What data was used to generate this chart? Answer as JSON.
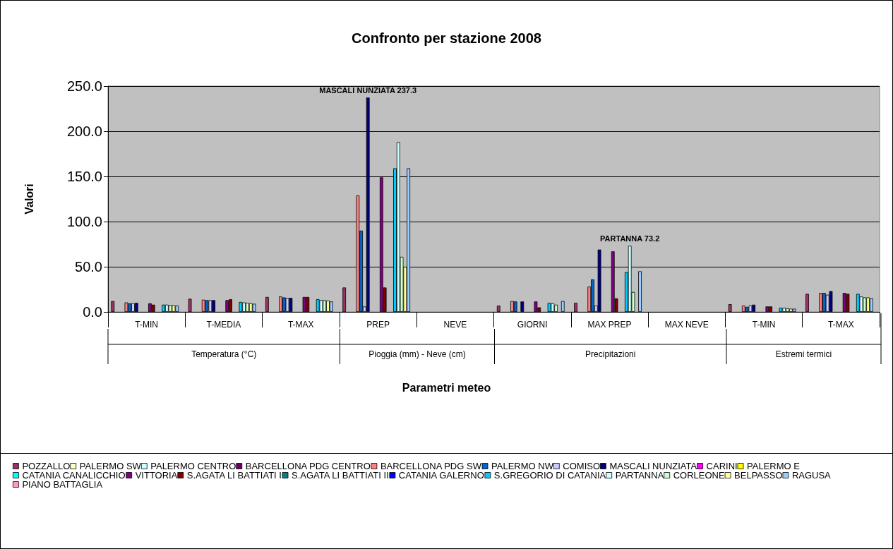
{
  "chart_data": {
    "type": "bar",
    "title": "Confronto per stazione 2008",
    "xlabel": "Parametri meteo",
    "ylabel": "Valori",
    "categories": [
      "T-MIN",
      "T-MEDIA",
      "T-MAX",
      "PREP",
      "NEVE",
      "GIORNI",
      "MAX PREP",
      "MAX NEVE",
      "T-MIN",
      "T-MAX"
    ],
    "annotations": [
      "Temperatura (°C)",
      "Pioggia (mm) - Neve (cm)",
      "Precipitazioni",
      "Estremi termici"
    ],
    "ylim": [
      0,
      250
    ],
    "yticks": [
      {
        "value": 0,
        "label": "0.0"
      },
      {
        "value": 50,
        "label": "50.0"
      },
      {
        "value": 100,
        "label": "100.0"
      },
      {
        "value": 150,
        "label": "150.0"
      },
      {
        "value": 200,
        "label": "200.0"
      },
      {
        "value": 250,
        "label": "250.0"
      }
    ],
    "grid": "y",
    "legend": "bottom",
    "series": [
      {
        "name": "POZZALLO",
        "color": "#993366",
        "values": [
          12,
          14.5,
          16.5,
          27,
          null,
          7,
          10,
          null,
          8.5,
          20
        ]
      },
      {
        "name": "PALERMO SW",
        "color": "#ffffcc",
        "values": [
          null,
          null,
          null,
          null,
          null,
          null,
          null,
          null,
          null,
          null
        ]
      },
      {
        "name": "PALERMO CENTRO",
        "color": "#ccffff",
        "values": [
          null,
          null,
          null,
          null,
          null,
          null,
          null,
          null,
          null,
          null
        ]
      },
      {
        "name": "BARCELLONA PDG CENTRO",
        "color": "#660066",
        "values": [
          null,
          null,
          null,
          null,
          null,
          null,
          null,
          null,
          null,
          null
        ]
      },
      {
        "name": "BARCELLONA PDG SW",
        "color": "#ff8080",
        "values": [
          10.5,
          13.5,
          17,
          129,
          null,
          12,
          28,
          null,
          7,
          21
        ]
      },
      {
        "name": "PALERMO NW",
        "color": "#0066cc",
        "values": [
          9.5,
          13,
          16,
          90,
          null,
          11.5,
          36,
          null,
          5.5,
          21
        ]
      },
      {
        "name": "COMISO",
        "color": "#ccccff",
        "values": [
          9.5,
          13,
          15.5,
          6,
          null,
          null,
          7,
          null,
          7,
          19
        ]
      },
      {
        "name": "MASCALI NUNZIATA",
        "color": "#000080",
        "values": [
          10,
          13,
          15.5,
          237.3,
          null,
          11.5,
          69,
          null,
          8,
          23
        ],
        "value_labels": [
          null,
          null,
          null,
          "MASCALI NUNZIATA 237.3",
          null,
          null,
          null,
          null,
          null,
          null
        ]
      },
      {
        "name": "CARINI",
        "color": "#ff00ff",
        "values": [
          null,
          null,
          null,
          null,
          null,
          null,
          null,
          null,
          null,
          null
        ]
      },
      {
        "name": "PALERMO E",
        "color": "#ffff00",
        "values": [
          null,
          null,
          null,
          null,
          null,
          null,
          null,
          null,
          null,
          null
        ]
      },
      {
        "name": "CATANIA CANALICCHIO",
        "color": "#00ffff",
        "values": [
          null,
          null,
          null,
          null,
          null,
          null,
          null,
          null,
          null,
          null
        ]
      },
      {
        "name": "VITTORIA",
        "color": "#800080",
        "values": [
          9.5,
          13,
          16.5,
          149,
          null,
          11.5,
          67,
          null,
          6,
          21
        ]
      },
      {
        "name": "S.AGATA LI BATTIATI I",
        "color": "#800000",
        "values": [
          8,
          14,
          16.5,
          27,
          null,
          5,
          15,
          null,
          6,
          20
        ]
      },
      {
        "name": "S.AGATA LI BATTIATI II",
        "color": "#008080",
        "values": [
          null,
          null,
          null,
          null,
          null,
          null,
          null,
          null,
          null,
          null
        ]
      },
      {
        "name": "CATANIA GALERNO",
        "color": "#0000ff",
        "values": [
          null,
          null,
          null,
          null,
          null,
          null,
          null,
          null,
          null,
          null
        ]
      },
      {
        "name": "S.GREGORIO DI CATANIA",
        "color": "#00ccff",
        "values": [
          8,
          11,
          14,
          159,
          null,
          10,
          44,
          null,
          4.5,
          20
        ]
      },
      {
        "name": "PARTANNA",
        "color": "#ccffff",
        "values": [
          8,
          10.5,
          13,
          188,
          null,
          9.5,
          73.2,
          null,
          4.5,
          17
        ],
        "value_labels": [
          null,
          null,
          null,
          null,
          null,
          null,
          "PARTANNA 73.2",
          null,
          null,
          null
        ]
      },
      {
        "name": "CORLEONE",
        "color": "#ccffcc",
        "values": [
          7.5,
          10,
          13,
          61,
          null,
          8,
          22,
          null,
          4,
          16
        ]
      },
      {
        "name": "BELPASSO",
        "color": "#ffff99",
        "values": [
          7.5,
          9.5,
          12.5,
          50,
          null,
          null,
          null,
          null,
          3.5,
          16
        ]
      },
      {
        "name": "RAGUSA",
        "color": "#99ccff",
        "values": [
          7,
          9,
          11.5,
          159,
          null,
          12,
          45,
          null,
          3.5,
          15
        ]
      },
      {
        "name": "PIANO BATTAGLIA",
        "color": "#ff99cc",
        "values": [
          null,
          null,
          null,
          null,
          null,
          null,
          null,
          null,
          null,
          null
        ]
      }
    ]
  }
}
